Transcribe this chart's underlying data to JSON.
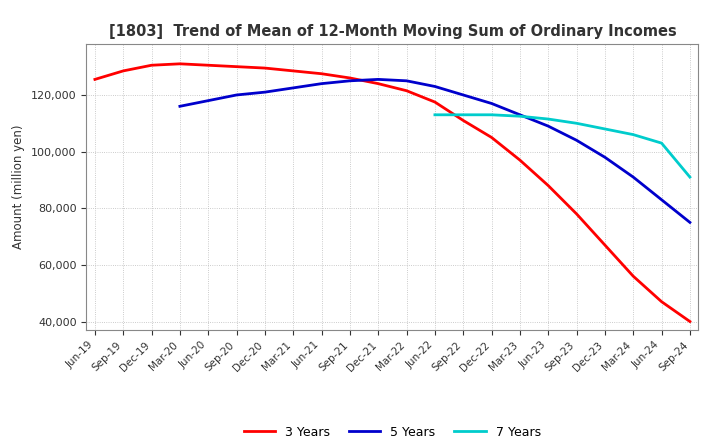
{
  "title": "[1803]  Trend of Mean of 12-Month Moving Sum of Ordinary Incomes",
  "ylabel": "Amount (million yen)",
  "ylim": [
    37000,
    138000
  ],
  "yticks": [
    40000,
    60000,
    80000,
    100000,
    120000
  ],
  "background_color": "#ffffff",
  "grid_color": "#bbbbbb",
  "series": {
    "3 Years": {
      "color": "#ff0000",
      "data": [
        [
          "Jun-19",
          125500
        ],
        [
          "Sep-19",
          128500
        ],
        [
          "Dec-19",
          130500
        ],
        [
          "Mar-20",
          131000
        ],
        [
          "Jun-20",
          130500
        ],
        [
          "Sep-20",
          130000
        ],
        [
          "Dec-20",
          129500
        ],
        [
          "Mar-21",
          128500
        ],
        [
          "Jun-21",
          127500
        ],
        [
          "Sep-21",
          126000
        ],
        [
          "Dec-21",
          124000
        ],
        [
          "Mar-22",
          121500
        ],
        [
          "Jun-22",
          117500
        ],
        [
          "Sep-22",
          111000
        ],
        [
          "Dec-22",
          105000
        ],
        [
          "Mar-23",
          97000
        ],
        [
          "Jun-23",
          88000
        ],
        [
          "Sep-23",
          78000
        ],
        [
          "Dec-23",
          67000
        ],
        [
          "Mar-24",
          56000
        ],
        [
          "Jun-24",
          47000
        ],
        [
          "Sep-24",
          40000
        ]
      ]
    },
    "5 Years": {
      "color": "#0000cc",
      "data": [
        [
          "Jun-19",
          null
        ],
        [
          "Sep-19",
          null
        ],
        [
          "Dec-19",
          null
        ],
        [
          "Mar-20",
          116000
        ],
        [
          "Jun-20",
          118000
        ],
        [
          "Sep-20",
          120000
        ],
        [
          "Dec-20",
          121000
        ],
        [
          "Mar-21",
          122500
        ],
        [
          "Jun-21",
          124000
        ],
        [
          "Sep-21",
          125000
        ],
        [
          "Dec-21",
          125500
        ],
        [
          "Mar-22",
          125000
        ],
        [
          "Jun-22",
          123000
        ],
        [
          "Sep-22",
          120000
        ],
        [
          "Dec-22",
          117000
        ],
        [
          "Mar-23",
          113000
        ],
        [
          "Jun-23",
          109000
        ],
        [
          "Sep-23",
          104000
        ],
        [
          "Dec-23",
          98000
        ],
        [
          "Mar-24",
          91000
        ],
        [
          "Jun-24",
          83000
        ],
        [
          "Sep-24",
          75000
        ]
      ]
    },
    "7 Years": {
      "color": "#00cccc",
      "data": [
        [
          "Jun-19",
          null
        ],
        [
          "Sep-19",
          null
        ],
        [
          "Dec-19",
          null
        ],
        [
          "Mar-20",
          null
        ],
        [
          "Jun-20",
          null
        ],
        [
          "Sep-20",
          null
        ],
        [
          "Dec-20",
          null
        ],
        [
          "Mar-21",
          null
        ],
        [
          "Jun-21",
          null
        ],
        [
          "Sep-21",
          null
        ],
        [
          "Dec-21",
          null
        ],
        [
          "Mar-22",
          null
        ],
        [
          "Jun-22",
          113000
        ],
        [
          "Sep-22",
          113000
        ],
        [
          "Dec-22",
          113000
        ],
        [
          "Mar-23",
          112500
        ],
        [
          "Jun-23",
          111500
        ],
        [
          "Sep-23",
          110000
        ],
        [
          "Dec-23",
          108000
        ],
        [
          "Mar-24",
          106000
        ],
        [
          "Jun-24",
          103000
        ],
        [
          "Sep-24",
          91000
        ]
      ]
    },
    "10 Years": {
      "color": "#007700",
      "data": [
        [
          "Jun-19",
          null
        ],
        [
          "Sep-19",
          null
        ],
        [
          "Dec-19",
          null
        ],
        [
          "Mar-20",
          null
        ],
        [
          "Jun-20",
          null
        ],
        [
          "Sep-20",
          null
        ],
        [
          "Dec-20",
          null
        ],
        [
          "Mar-21",
          null
        ],
        [
          "Jun-21",
          null
        ],
        [
          "Sep-21",
          null
        ],
        [
          "Dec-21",
          null
        ],
        [
          "Mar-22",
          null
        ],
        [
          "Jun-22",
          null
        ],
        [
          "Sep-22",
          null
        ],
        [
          "Dec-22",
          null
        ],
        [
          "Mar-23",
          null
        ],
        [
          "Jun-23",
          null
        ],
        [
          "Sep-23",
          null
        ],
        [
          "Dec-23",
          null
        ],
        [
          "Mar-24",
          null
        ],
        [
          "Jun-24",
          null
        ],
        [
          "Sep-24",
          null
        ]
      ]
    }
  },
  "xtick_labels": [
    "Jun-19",
    "Sep-19",
    "Dec-19",
    "Mar-20",
    "Jun-20",
    "Sep-20",
    "Dec-20",
    "Mar-21",
    "Jun-21",
    "Sep-21",
    "Dec-21",
    "Mar-22",
    "Jun-22",
    "Sep-22",
    "Dec-22",
    "Mar-23",
    "Jun-23",
    "Sep-23",
    "Dec-23",
    "Mar-24",
    "Jun-24",
    "Sep-24"
  ]
}
